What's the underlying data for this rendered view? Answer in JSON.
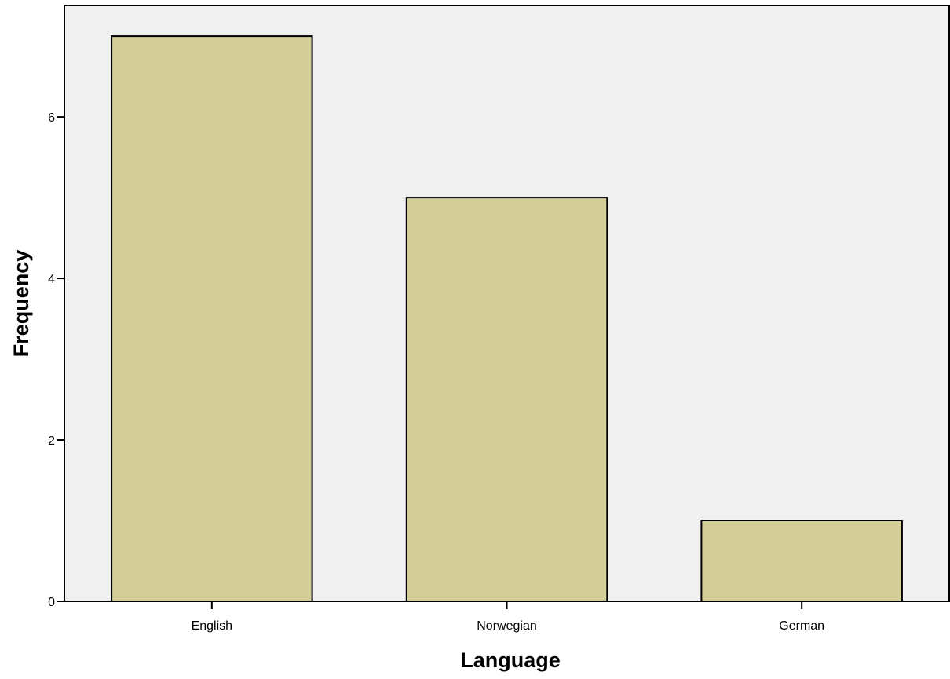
{
  "chart_data": {
    "type": "bar",
    "categories": [
      "English",
      "Norwegian",
      "German"
    ],
    "values": [
      7,
      5,
      1
    ],
    "xlabel": "Language",
    "ylabel": "Frequency",
    "yticks": [
      0,
      2,
      4,
      6
    ],
    "ylim": [
      0,
      7.38
    ],
    "grid": false,
    "legend": "none",
    "colors": {
      "bar_fill": "#d3cd98",
      "bar_stroke": "#000000",
      "plot_background": "#f0f0f0",
      "axis": "#000000"
    }
  }
}
